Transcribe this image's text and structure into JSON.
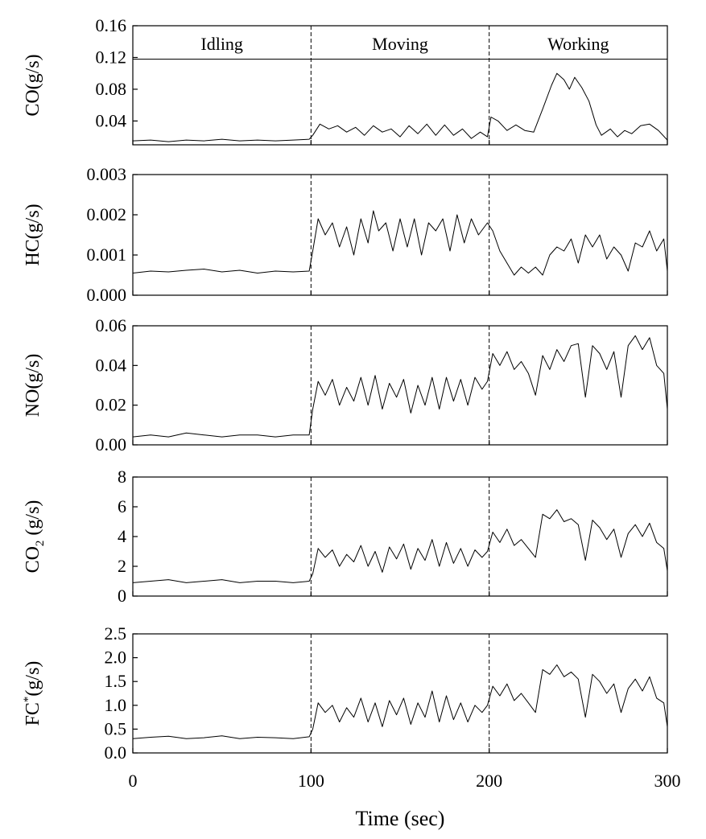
{
  "chart_data": {
    "type": "line",
    "xlabel": "Time (sec)",
    "xlim": [
      0,
      300
    ],
    "xticks": [
      0,
      100,
      200,
      300
    ],
    "phase_boundaries": [
      100,
      200
    ],
    "phases": [
      {
        "label": "Idling",
        "range": [
          0,
          100
        ]
      },
      {
        "label": "Moving",
        "range": [
          100,
          200
        ]
      },
      {
        "label": "Working",
        "range": [
          200,
          300
        ]
      }
    ],
    "phase_label_line_y": 0.118,
    "panels": [
      {
        "id": "co",
        "ylabel": "CO(g/s)",
        "ylim": [
          0.01,
          0.16
        ],
        "yticks": [
          0.04,
          0.08,
          0.12,
          0.16
        ],
        "ytick_labels": [
          "0.04",
          "0.08",
          "0.12",
          "0.16"
        ],
        "series": {
          "x": [
            0,
            10,
            20,
            30,
            40,
            50,
            60,
            70,
            80,
            90,
            99,
            101,
            105,
            110,
            115,
            120,
            125,
            130,
            135,
            140,
            145,
            150,
            155,
            160,
            165,
            170,
            175,
            180,
            185,
            190,
            195,
            199,
            201,
            205,
            210,
            215,
            220,
            225,
            230,
            235,
            238,
            242,
            245,
            248,
            252,
            256,
            260,
            263,
            268,
            272,
            276,
            280,
            285,
            290,
            295,
            300
          ],
          "values": [
            0.015,
            0.016,
            0.014,
            0.016,
            0.015,
            0.017,
            0.015,
            0.016,
            0.015,
            0.016,
            0.017,
            0.022,
            0.036,
            0.03,
            0.034,
            0.026,
            0.032,
            0.022,
            0.034,
            0.026,
            0.03,
            0.02,
            0.034,
            0.024,
            0.036,
            0.022,
            0.035,
            0.022,
            0.03,
            0.018,
            0.026,
            0.02,
            0.045,
            0.04,
            0.028,
            0.035,
            0.028,
            0.026,
            0.055,
            0.085,
            0.1,
            0.092,
            0.08,
            0.095,
            0.082,
            0.065,
            0.035,
            0.022,
            0.03,
            0.02,
            0.028,
            0.024,
            0.034,
            0.036,
            0.028,
            0.016
          ]
        }
      },
      {
        "id": "hc",
        "ylabel": "HC(g/s)",
        "ylim": [
          0,
          0.003
        ],
        "yticks": [
          0,
          0.001,
          0.002,
          0.003
        ],
        "ytick_labels": [
          "0.000",
          "0.001",
          "0.002",
          "0.003"
        ],
        "series": {
          "x": [
            0,
            10,
            20,
            30,
            40,
            50,
            60,
            70,
            80,
            90,
            99,
            101,
            104,
            108,
            112,
            116,
            120,
            124,
            128,
            132,
            135,
            138,
            142,
            146,
            150,
            154,
            158,
            162,
            166,
            170,
            174,
            178,
            182,
            186,
            190,
            194,
            199,
            202,
            206,
            210,
            214,
            218,
            222,
            226,
            230,
            234,
            238,
            242,
            246,
            250,
            254,
            258,
            262,
            266,
            270,
            274,
            278,
            282,
            286,
            290,
            294,
            298,
            300
          ],
          "values": [
            0.00055,
            0.0006,
            0.00058,
            0.00062,
            0.00065,
            0.00058,
            0.00062,
            0.00055,
            0.0006,
            0.00058,
            0.0006,
            0.0011,
            0.0019,
            0.0015,
            0.0018,
            0.0012,
            0.0017,
            0.001,
            0.0019,
            0.0013,
            0.0021,
            0.0016,
            0.0018,
            0.0011,
            0.0019,
            0.0012,
            0.0019,
            0.001,
            0.0018,
            0.0016,
            0.0019,
            0.0011,
            0.002,
            0.0013,
            0.0019,
            0.0015,
            0.0018,
            0.0016,
            0.0011,
            0.0008,
            0.0005,
            0.0007,
            0.00055,
            0.0007,
            0.0005,
            0.001,
            0.0012,
            0.0011,
            0.0014,
            0.0008,
            0.0015,
            0.0012,
            0.0015,
            0.0009,
            0.0012,
            0.001,
            0.0006,
            0.0013,
            0.0012,
            0.0016,
            0.0011,
            0.0014,
            0.0006
          ]
        }
      },
      {
        "id": "no",
        "ylabel": "NO(g/s)",
        "ylim": [
          0,
          0.06
        ],
        "yticks": [
          0,
          0.02,
          0.04,
          0.06
        ],
        "ytick_labels": [
          "0.00",
          "0.02",
          "0.04",
          "0.06"
        ],
        "series": {
          "x": [
            0,
            10,
            20,
            30,
            40,
            50,
            60,
            70,
            80,
            90,
            99,
            101,
            104,
            108,
            112,
            116,
            120,
            124,
            128,
            132,
            136,
            140,
            144,
            148,
            152,
            156,
            160,
            164,
            168,
            172,
            176,
            180,
            184,
            188,
            192,
            196,
            199,
            202,
            206,
            210,
            214,
            218,
            222,
            226,
            230,
            234,
            238,
            242,
            246,
            250,
            254,
            258,
            262,
            266,
            270,
            274,
            278,
            282,
            286,
            290,
            294,
            298,
            300
          ],
          "values": [
            0.004,
            0.005,
            0.004,
            0.006,
            0.005,
            0.004,
            0.005,
            0.005,
            0.004,
            0.005,
            0.005,
            0.018,
            0.032,
            0.025,
            0.033,
            0.02,
            0.029,
            0.022,
            0.034,
            0.02,
            0.035,
            0.018,
            0.031,
            0.024,
            0.033,
            0.016,
            0.03,
            0.02,
            0.034,
            0.018,
            0.034,
            0.022,
            0.033,
            0.02,
            0.034,
            0.028,
            0.032,
            0.046,
            0.04,
            0.047,
            0.038,
            0.042,
            0.036,
            0.025,
            0.045,
            0.038,
            0.048,
            0.042,
            0.05,
            0.051,
            0.024,
            0.05,
            0.046,
            0.038,
            0.047,
            0.024,
            0.05,
            0.055,
            0.048,
            0.054,
            0.04,
            0.036,
            0.018
          ]
        }
      },
      {
        "id": "co2",
        "ylabel_parts": [
          "CO",
          "2",
          " (g/s)"
        ],
        "ylim": [
          0,
          8
        ],
        "yticks": [
          0,
          2,
          4,
          6,
          8
        ],
        "ytick_labels": [
          "0",
          "2",
          "4",
          "6",
          "8"
        ],
        "series": {
          "x": [
            0,
            10,
            20,
            30,
            40,
            50,
            60,
            70,
            80,
            90,
            99,
            101,
            104,
            108,
            112,
            116,
            120,
            124,
            128,
            132,
            136,
            140,
            144,
            148,
            152,
            156,
            160,
            164,
            168,
            172,
            176,
            180,
            184,
            188,
            192,
            196,
            199,
            202,
            206,
            210,
            214,
            218,
            222,
            226,
            230,
            234,
            238,
            242,
            246,
            250,
            254,
            258,
            262,
            266,
            270,
            274,
            278,
            282,
            286,
            290,
            294,
            298,
            300
          ],
          "values": [
            0.9,
            1.0,
            1.1,
            0.9,
            1.0,
            1.1,
            0.9,
            1.0,
            1.0,
            0.9,
            1.0,
            1.5,
            3.2,
            2.6,
            3.1,
            2.0,
            2.8,
            2.3,
            3.4,
            2.0,
            3.0,
            1.6,
            3.3,
            2.5,
            3.5,
            1.8,
            3.2,
            2.4,
            3.8,
            2.0,
            3.6,
            2.2,
            3.2,
            2.0,
            3.1,
            2.6,
            3.0,
            4.3,
            3.6,
            4.5,
            3.4,
            3.8,
            3.2,
            2.6,
            5.5,
            5.2,
            5.8,
            5.0,
            5.2,
            4.8,
            2.4,
            5.1,
            4.6,
            3.8,
            4.5,
            2.6,
            4.2,
            4.8,
            4.0,
            4.9,
            3.6,
            3.2,
            1.7
          ]
        }
      },
      {
        "id": "fc",
        "ylabel_parts": [
          "FC",
          "*",
          "(g/s)"
        ],
        "ylim": [
          0,
          2.5
        ],
        "yticks": [
          0,
          0.5,
          1.0,
          1.5,
          2.0,
          2.5
        ],
        "ytick_labels": [
          "0.0",
          "0.5",
          "1.0",
          "1.5",
          "2.0",
          "2.5"
        ],
        "series": {
          "x": [
            0,
            10,
            20,
            30,
            40,
            50,
            60,
            70,
            80,
            90,
            99,
            101,
            104,
            108,
            112,
            116,
            120,
            124,
            128,
            132,
            136,
            140,
            144,
            148,
            152,
            156,
            160,
            164,
            168,
            172,
            176,
            180,
            184,
            188,
            192,
            196,
            199,
            202,
            206,
            210,
            214,
            218,
            222,
            226,
            230,
            234,
            238,
            242,
            246,
            250,
            254,
            258,
            262,
            266,
            270,
            274,
            278,
            282,
            286,
            290,
            294,
            298,
            300
          ],
          "values": [
            0.3,
            0.33,
            0.35,
            0.3,
            0.32,
            0.36,
            0.3,
            0.33,
            0.32,
            0.3,
            0.34,
            0.5,
            1.05,
            0.85,
            1.0,
            0.65,
            0.95,
            0.75,
            1.15,
            0.65,
            1.05,
            0.55,
            1.1,
            0.8,
            1.15,
            0.6,
            1.05,
            0.75,
            1.3,
            0.65,
            1.2,
            0.7,
            1.05,
            0.65,
            1.0,
            0.85,
            1.0,
            1.4,
            1.2,
            1.45,
            1.1,
            1.25,
            1.05,
            0.85,
            1.75,
            1.65,
            1.85,
            1.6,
            1.7,
            1.55,
            0.75,
            1.65,
            1.5,
            1.25,
            1.45,
            0.85,
            1.35,
            1.55,
            1.3,
            1.6,
            1.15,
            1.05,
            0.55
          ]
        }
      }
    ]
  }
}
